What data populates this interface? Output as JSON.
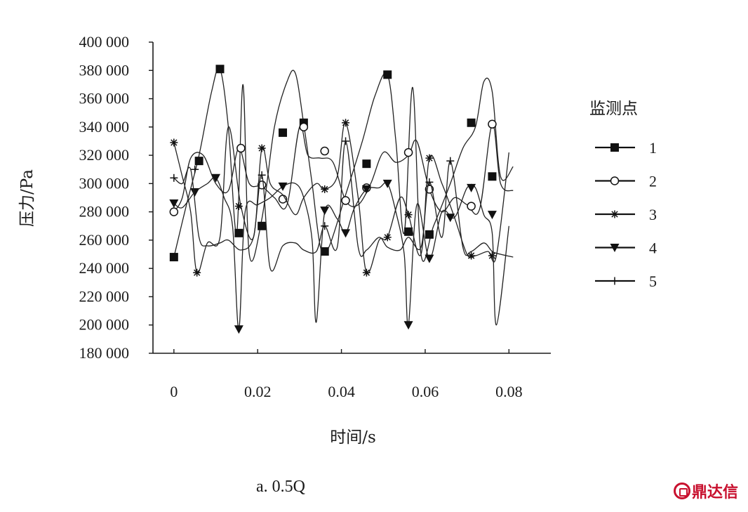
{
  "chart_data": {
    "type": "line",
    "xlabel": "时间/s",
    "ylabel": "压力/Pa",
    "caption": "a. 0.5Q",
    "legend_title": "监测点",
    "legend_position": "right",
    "xlim": [
      -0.005,
      0.09
    ],
    "ylim": [
      180000,
      400000
    ],
    "xticks": [
      0,
      0.02,
      0.04,
      0.06,
      0.08
    ],
    "xtick_labels": [
      "0",
      "0.02",
      "0.04",
      "0.06",
      "0.08"
    ],
    "yticks": [
      180000,
      200000,
      220000,
      240000,
      260000,
      280000,
      300000,
      320000,
      340000,
      360000,
      380000,
      400000
    ],
    "ytick_labels": [
      "180 000",
      "200 000",
      "220 000",
      "240 000",
      "260 000",
      "280 000",
      "300 000",
      "320 000",
      "340 000",
      "360 000",
      "380 000",
      "400 000"
    ],
    "grid": false,
    "series": [
      {
        "name": "1",
        "marker": "filled-square",
        "x": [
          0,
          0.003,
          0.006,
          0.009,
          0.011,
          0.013,
          0.015,
          0.0165,
          0.018,
          0.021,
          0.024,
          0.027,
          0.029,
          0.031,
          0.033,
          0.035,
          0.037,
          0.041,
          0.045,
          0.048,
          0.051,
          0.053,
          0.055,
          0.057,
          0.059,
          0.062,
          0.066,
          0.069,
          0.072,
          0.074,
          0.076,
          0.078,
          0.081
        ],
        "y": [
          248000,
          285000,
          320000,
          365000,
          381000,
          340000,
          265000,
          370000,
          250000,
          275000,
          340000,
          372000,
          378000,
          342000,
          300000,
          255000,
          255000,
          292000,
          330000,
          362000,
          377000,
          330000,
          265000,
          368000,
          250000,
          270000,
          300000,
          325000,
          340000,
          372000,
          365000,
          305000,
          312000
        ],
        "markers_x": [
          0,
          0.006,
          0.011,
          0.0155,
          0.021,
          0.026,
          0.031,
          0.036,
          0.046,
          0.051,
          0.056,
          0.061,
          0.071,
          0.076
        ],
        "markers_y": [
          248000,
          316000,
          381000,
          265000,
          270000,
          336000,
          343000,
          252000,
          314000,
          377000,
          266000,
          264000,
          343000,
          305000
        ]
      },
      {
        "name": "2",
        "marker": "open-circle",
        "x": [
          0,
          0.002,
          0.004,
          0.007,
          0.01,
          0.013,
          0.0155,
          0.018,
          0.021,
          0.024,
          0.027,
          0.03,
          0.032,
          0.035,
          0.038,
          0.041,
          0.044,
          0.047,
          0.05,
          0.053,
          0.056,
          0.058,
          0.061,
          0.064,
          0.067,
          0.07,
          0.073,
          0.076,
          0.078,
          0.081
        ],
        "y": [
          280000,
          290000,
          318000,
          320000,
          300000,
          295000,
          325000,
          300000,
          298000,
          290000,
          285000,
          340000,
          320000,
          318000,
          315000,
          288000,
          285000,
          300000,
          322000,
          315000,
          320000,
          330000,
          296000,
          280000,
          290000,
          285000,
          282000,
          342000,
          300000,
          295000
        ],
        "markers_x": [
          0,
          0.016,
          0.021,
          0.026,
          0.031,
          0.036,
          0.041,
          0.046,
          0.056,
          0.061,
          0.071,
          0.076
        ],
        "markers_y": [
          280000,
          325000,
          299000,
          289000,
          340000,
          323000,
          288000,
          297000,
          322000,
          296000,
          284000,
          342000
        ]
      },
      {
        "name": "3",
        "marker": "asterisk",
        "x": [
          0,
          0.002,
          0.004,
          0.0055,
          0.008,
          0.011,
          0.013,
          0.016,
          0.019,
          0.021,
          0.023,
          0.026,
          0.029,
          0.031,
          0.034,
          0.036,
          0.039,
          0.041,
          0.044,
          0.046,
          0.049,
          0.051,
          0.054,
          0.056,
          0.059,
          0.061,
          0.064,
          0.067,
          0.07,
          0.072,
          0.075,
          0.077,
          0.08
        ],
        "y": [
          329000,
          305000,
          280000,
          237000,
          258000,
          262000,
          340000,
          284000,
          262000,
          325000,
          300000,
          292000,
          278000,
          290000,
          300000,
          296000,
          305000,
          343000,
          290000,
          237000,
          260000,
          262000,
          290000,
          278000,
          250000,
          318000,
          300000,
          276000,
          250000,
          249000,
          252000,
          249000,
          322000
        ],
        "markers_x": [
          0,
          0.0055,
          0.0155,
          0.021,
          0.036,
          0.041,
          0.046,
          0.051,
          0.056,
          0.061,
          0.071,
          0.076
        ],
        "markers_y": [
          329000,
          237000,
          284000,
          325000,
          296000,
          343000,
          237000,
          262000,
          278000,
          318000,
          249000,
          249000
        ]
      },
      {
        "name": "4",
        "marker": "filled-triangle-down",
        "x": [
          0,
          0.002,
          0.005,
          0.008,
          0.01,
          0.012,
          0.014,
          0.0155,
          0.017,
          0.02,
          0.023,
          0.026,
          0.029,
          0.031,
          0.033,
          0.034,
          0.036,
          0.039,
          0.041,
          0.043,
          0.046,
          0.049,
          0.051,
          0.053,
          0.055,
          0.056,
          0.058,
          0.061,
          0.064,
          0.067,
          0.07,
          0.072,
          0.074,
          0.076,
          0.077,
          0.08
        ],
        "y": [
          286000,
          283000,
          294000,
          300000,
          304000,
          290000,
          270000,
          197000,
          280000,
          285000,
          290000,
          298000,
          300000,
          290000,
          260000,
          202000,
          280000,
          275000,
          265000,
          282000,
          296000,
          297000,
          300000,
          280000,
          250000,
          200000,
          285000,
          247000,
          280000,
          276000,
          297000,
          297000,
          278000,
          265000,
          200000,
          270000
        ],
        "markers_x": [
          0,
          0.005,
          0.01,
          0.0155,
          0.026,
          0.036,
          0.041,
          0.046,
          0.051,
          0.056,
          0.061,
          0.066,
          0.071,
          0.076
        ],
        "markers_y": [
          286000,
          294000,
          304000,
          197000,
          298000,
          281000,
          265000,
          296000,
          300000,
          200000,
          247000,
          276000,
          297000,
          278000
        ]
      },
      {
        "name": "5",
        "marker": "plus",
        "x": [
          0,
          0.002,
          0.004,
          0.006,
          0.008,
          0.011,
          0.013,
          0.016,
          0.019,
          0.021,
          0.023,
          0.026,
          0.029,
          0.031,
          0.034,
          0.036,
          0.039,
          0.041,
          0.044,
          0.046,
          0.049,
          0.051,
          0.054,
          0.056,
          0.059,
          0.061,
          0.064,
          0.066,
          0.069,
          0.071,
          0.074,
          0.076,
          0.078,
          0.081
        ],
        "y": [
          304000,
          300000,
          310000,
          262000,
          256000,
          258000,
          260000,
          253000,
          262000,
          306000,
          240000,
          256000,
          258000,
          253000,
          252000,
          270000,
          255000,
          330000,
          255000,
          253000,
          262000,
          255000,
          253000,
          262000,
          255000,
          301000,
          262000,
          316000,
          255000,
          252000,
          258000,
          252000,
          250000,
          248000
        ],
        "markers_x": [
          0,
          0.005,
          0.021,
          0.036,
          0.041,
          0.061,
          0.066
        ],
        "markers_y": [
          304000,
          310000,
          306000,
          270000,
          330000,
          301000,
          316000
        ]
      }
    ]
  },
  "logo_text": "鼎达信"
}
